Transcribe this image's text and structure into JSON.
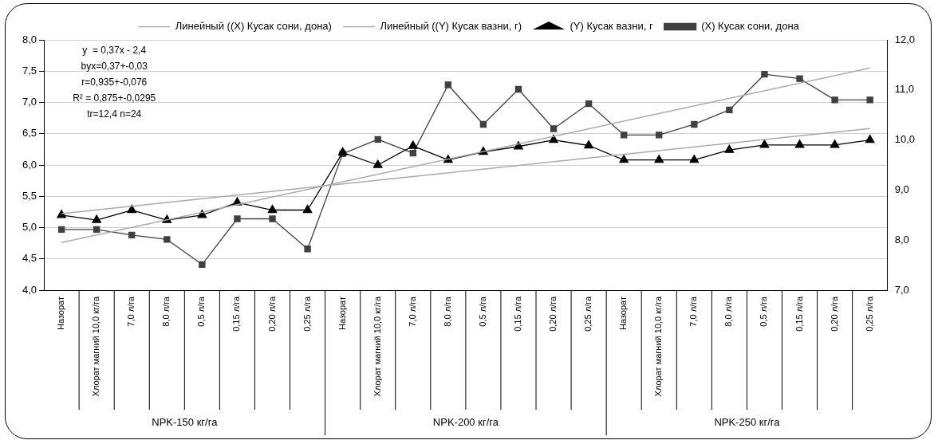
{
  "chart_data": {
    "type": "line",
    "categories": [
      "Назорат",
      "Хлорат магний 10,0 кг/га",
      "7,0 л/га",
      "8,0 л/га",
      "0,5 л/га",
      "0,15 л/га",
      "0,20 л/га",
      "0,25 л/га",
      "Назорат",
      "Хлорат магний 10,0 кг/га",
      "7,0 л/га",
      "8,0 л/га",
      "0,5 л/га",
      "0,15 л/га",
      "0,20 л/га",
      "0,25 л/га",
      "Назорат",
      "Хлорат магний 10,0 кг/га",
      "7,0 л/га",
      "8,0 л/га",
      "0,5 л/га",
      "0,15 л/га",
      "0,20 л/га",
      "0,25 л/га"
    ],
    "series": [
      {
        "name": "(X) Кусак сони, дона",
        "color": "#404040",
        "marker": "square",
        "values": [
          4.97,
          4.97,
          4.88,
          4.81,
          4.41,
          5.14,
          5.14,
          4.66,
          6.18,
          6.41,
          6.19,
          7.28,
          6.65,
          7.21,
          6.58,
          6.98,
          6.48,
          6.48,
          6.65,
          6.88,
          7.45,
          7.38,
          7.04,
          7.04
        ]
      },
      {
        "name": "(Y) Кусак вазни, г",
        "color": "#000000",
        "marker": "triangle",
        "axis": "y2",
        "values": [
          8.5,
          8.4,
          8.6,
          8.4,
          8.5,
          8.75,
          8.6,
          8.6,
          9.75,
          9.5,
          9.88,
          9.6,
          9.76,
          9.87,
          10.0,
          9.89,
          9.6,
          9.6,
          9.6,
          9.8,
          9.9,
          9.9,
          9.9,
          10.0
        ]
      },
      {
        "name": "Линейный ((Y) Кусак вазни, г)",
        "color": "#aaaaaa",
        "marker": "none",
        "axis": "y2",
        "values": [
          8.53,
          null,
          null,
          null,
          null,
          null,
          null,
          null,
          null,
          null,
          null,
          null,
          null,
          null,
          null,
          null,
          null,
          null,
          null,
          null,
          null,
          null,
          null,
          10.23
        ]
      },
      {
        "name": "Линейный ((X) Кусак сони, дона)",
        "color": "#aaaaaa",
        "marker": "none",
        "values": [
          4.76,
          null,
          null,
          null,
          null,
          null,
          null,
          null,
          null,
          null,
          null,
          null,
          null,
          null,
          null,
          null,
          null,
          null,
          null,
          null,
          null,
          null,
          null,
          7.55
        ]
      }
    ],
    "ylim": [
      4,
      8
    ],
    "yticks": [
      {
        "value": 4,
        "label": "4,0"
      },
      {
        "value": 4.5,
        "label": "4,5"
      },
      {
        "value": 5,
        "label": "5,0"
      },
      {
        "value": 5.5,
        "label": "5,5"
      },
      {
        "value": 6,
        "label": "6,0"
      },
      {
        "value": 6.5,
        "label": "6,5"
      },
      {
        "value": 7,
        "label": "7,0"
      },
      {
        "value": 7.5,
        "label": "7,5"
      },
      {
        "value": 8,
        "label": "8,0"
      }
    ],
    "y2lim": [
      7,
      12
    ],
    "y2ticks": [
      {
        "value": 7,
        "label": "7,0"
      },
      {
        "value": 8,
        "label": "8,0"
      },
      {
        "value": 9,
        "label": "9,0"
      },
      {
        "value": 10,
        "label": "10,0"
      },
      {
        "value": 11,
        "label": "11,0"
      },
      {
        "value": 12,
        "label": "12,0"
      }
    ],
    "grid": "y",
    "legend": "top",
    "line_style": "solid",
    "annotations": [
      "y  = 0,37x - 2,4",
      "byx=0,37+-0,03",
      "r=0,935+-0,076",
      "R² = 0,875+-0,0295",
      "tr=12,4 n=24",
      {
        "text": "NPK-150 кг/га"
      },
      {
        "text": "NPK-200 кг/га"
      },
      {
        "text": "NPK-250 кг/га"
      }
    ]
  }
}
